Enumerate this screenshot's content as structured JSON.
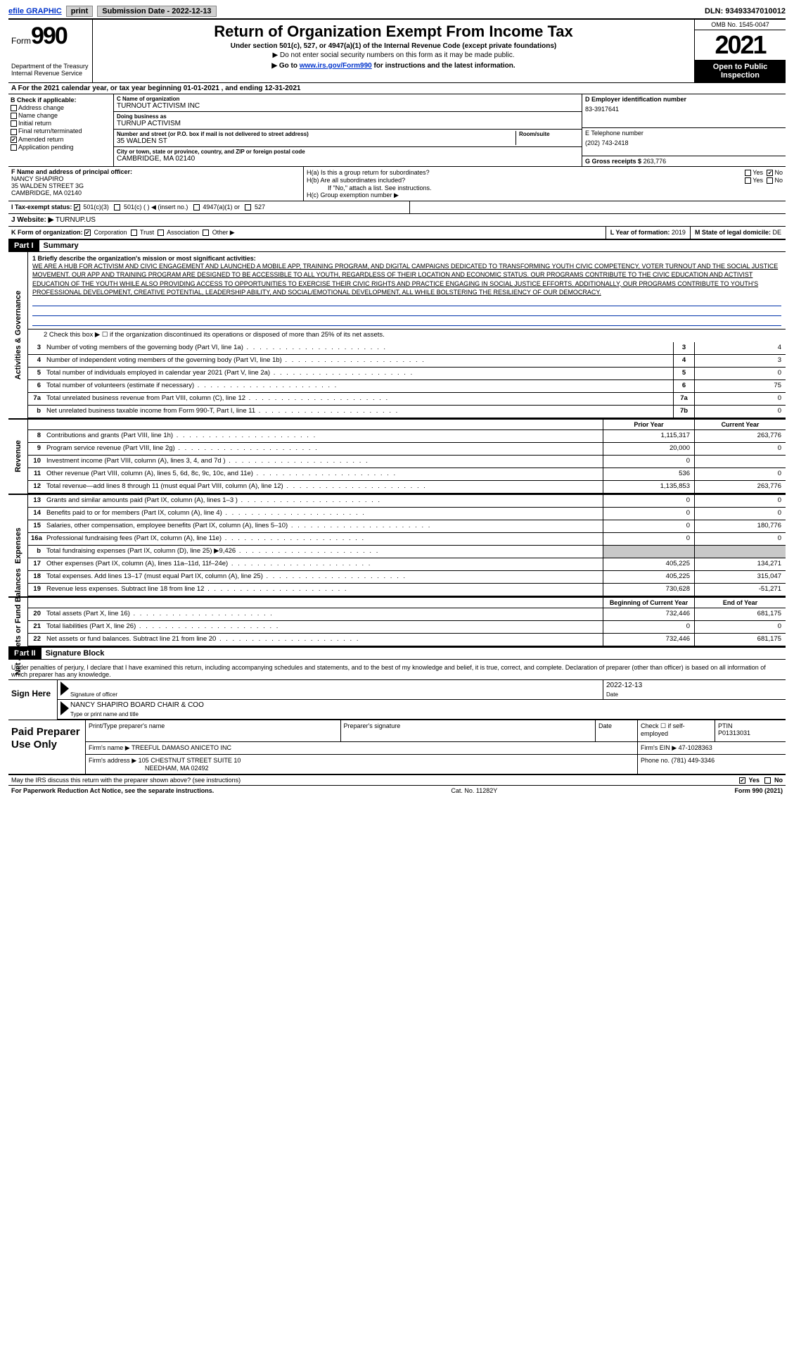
{
  "topbar": {
    "efile": "efile GRAPHIC",
    "print": "print",
    "subdate_label": "Submission Date - ",
    "subdate": "2022-12-13",
    "dln": "DLN: 93493347010012"
  },
  "header": {
    "form_prefix": "Form",
    "form_num": "990",
    "dept": "Department of the Treasury Internal Revenue Service",
    "title": "Return of Organization Exempt From Income Tax",
    "sub": "Under section 501(c), 527, or 4947(a)(1) of the Internal Revenue Code (except private foundations)",
    "note": "▶ Do not enter social security numbers on this form as it may be made public.",
    "goto_pre": "▶ Go to ",
    "goto_link": "www.irs.gov/Form990",
    "goto_post": " for instructions and the latest information.",
    "omb": "OMB No. 1545-0047",
    "year": "2021",
    "open": "Open to Public Inspection"
  },
  "row_a": "A  For the 2021 calendar year, or tax year beginning 01-01-2021   , and ending 12-31-2021",
  "box_b": {
    "label": "B Check if applicable:",
    "items": [
      "Address change",
      "Name change",
      "Initial return",
      "Final return/terminated",
      "Amended return",
      "Application pending"
    ],
    "checked_index": 4
  },
  "box_c": {
    "name_caption": "C Name of organization",
    "name": "TURNOUT ACTIVISM INC",
    "dba_caption": "Doing business as",
    "dba": "TURNUP ACTIVISM",
    "addr_caption": "Number and street (or P.O. box if mail is not delivered to street address)",
    "addr": "35 WALDEN ST",
    "room_caption": "Room/suite",
    "city_caption": "City or town, state or province, country, and ZIP or foreign postal code",
    "city": "CAMBRIDGE, MA  02140"
  },
  "box_d": {
    "label": "D Employer identification number",
    "val": "83-3917641"
  },
  "box_e": {
    "label": "E Telephone number",
    "val": "(202) 743-2418"
  },
  "box_g": {
    "label": "G Gross receipts $",
    "val": "263,776"
  },
  "box_f": {
    "label": "F Name and address of principal officer:",
    "name": "NANCY SHAPIRO",
    "addr1": "35 WALDEN STREET 3G",
    "addr2": "CAMBRIDGE, MA  02140"
  },
  "box_h": {
    "ha": "H(a)  Is this a group return for subordinates?",
    "ha_yes": "Yes",
    "ha_no": "No",
    "hb": "H(b)  Are all subordinates included?",
    "hb_yes": "Yes",
    "hb_no": "No",
    "hb_note": "If \"No,\" attach a list. See instructions.",
    "hc": "H(c)  Group exemption number ▶"
  },
  "row_i": {
    "label": "I   Tax-exempt status:",
    "opts": [
      "501(c)(3)",
      "501(c) (  ) ◀ (insert no.)",
      "4947(a)(1) or",
      "527"
    ],
    "checked": 0
  },
  "row_j": {
    "label": "J   Website: ▶",
    "val": "TURNUP.US"
  },
  "row_k": {
    "k": "K Form of organization:",
    "opts": [
      "Corporation",
      "Trust",
      "Association",
      "Other ▶"
    ],
    "checked": 0,
    "l_label": "L Year of formation:",
    "l_val": "2019",
    "m_label": "M State of legal domicile:",
    "m_val": "DE"
  },
  "part1": {
    "hdr": "Part I",
    "title": "Summary",
    "mission_lead": "1   Briefly describe the organization's mission or most significant activities:",
    "mission": "WE ARE A HUB FOR ACTIVISM AND CIVIC ENGAGEMENT AND LAUNCHED A MOBILE APP, TRAINING PROGRAM, AND DIGITAL CAMPAIGNS DEDICATED TO TRANSFORMING YOUTH CIVIC COMPETENCY, VOTER TURNOUT AND THE SOCIAL JUSTICE MOVEMENT. OUR APP AND TRAINING PROGRAM ARE DESIGNED TO BE ACCESSIBLE TO ALL YOUTH, REGARDLESS OF THEIR LOCATION AND ECONOMIC STATUS. OUR PROGRAMS CONTRIBUTE TO THE CIVIC EDUCATION AND ACTIVIST EDUCATION OF THE YOUTH WHILE ALSO PROVIDING ACCESS TO OPPORTUNITIES TO EXERCISE THEIR CIVIC RIGHTS AND PRACTICE ENGAGING IN SOCIAL JUSTICE EFFORTS. ADDITIONALLY, OUR PROGRAMS CONTRIBUTE TO YOUTH'S PROFESSIONAL DEVELOPMENT, CREATIVE POTENTIAL, LEADERSHIP ABILITY, AND SOCIAL/EMOTIONAL DEVELOPMENT, ALL WHILE BOLSTERING THE RESILIENCY OF OUR DEMOCRACY.",
    "line2": "2   Check this box ▶ ☐  if the organization discontinued its operations or disposed of more than 25% of its net assets.",
    "sideA": "Activities & Governance",
    "sideB": "Revenue",
    "sideC": "Expenses",
    "sideD": "Net Assets or Fund Balances",
    "gov_lines": [
      {
        "n": "3",
        "d": "Number of voting members of the governing body (Part VI, line 1a)",
        "box": "3",
        "v": "4"
      },
      {
        "n": "4",
        "d": "Number of independent voting members of the governing body (Part VI, line 1b)",
        "box": "4",
        "v": "3"
      },
      {
        "n": "5",
        "d": "Total number of individuals employed in calendar year 2021 (Part V, line 2a)",
        "box": "5",
        "v": "0"
      },
      {
        "n": "6",
        "d": "Total number of volunteers (estimate if necessary)",
        "box": "6",
        "v": "75"
      },
      {
        "n": "7a",
        "d": "Total unrelated business revenue from Part VIII, column (C), line 12",
        "box": "7a",
        "v": "0"
      },
      {
        "n": "b",
        "d": "Net unrelated business taxable income from Form 990-T, Part I, line 11",
        "box": "7b",
        "v": "0"
      }
    ],
    "col_prior": "Prior Year",
    "col_curr": "Current Year",
    "rev_lines": [
      {
        "n": "8",
        "d": "Contributions and grants (Part VIII, line 1h)",
        "p": "1,115,317",
        "c": "263,776"
      },
      {
        "n": "9",
        "d": "Program service revenue (Part VIII, line 2g)",
        "p": "20,000",
        "c": "0"
      },
      {
        "n": "10",
        "d": "Investment income (Part VIII, column (A), lines 3, 4, and 7d )",
        "p": "0",
        "c": ""
      },
      {
        "n": "11",
        "d": "Other revenue (Part VIII, column (A), lines 5, 6d, 8c, 9c, 10c, and 11e)",
        "p": "536",
        "c": "0"
      },
      {
        "n": "12",
        "d": "Total revenue—add lines 8 through 11 (must equal Part VIII, column (A), line 12)",
        "p": "1,135,853",
        "c": "263,776"
      }
    ],
    "exp_lines": [
      {
        "n": "13",
        "d": "Grants and similar amounts paid (Part IX, column (A), lines 1–3 )",
        "p": "0",
        "c": "0"
      },
      {
        "n": "14",
        "d": "Benefits paid to or for members (Part IX, column (A), line 4)",
        "p": "0",
        "c": "0"
      },
      {
        "n": "15",
        "d": "Salaries, other compensation, employee benefits (Part IX, column (A), lines 5–10)",
        "p": "0",
        "c": "180,776"
      },
      {
        "n": "16a",
        "d": "Professional fundraising fees (Part IX, column (A), line 11e)",
        "p": "0",
        "c": "0"
      },
      {
        "n": "b",
        "d": "Total fundraising expenses (Part IX, column (D), line 25) ▶9,426",
        "p": "SHADE",
        "c": "SHADE"
      },
      {
        "n": "17",
        "d": "Other expenses (Part IX, column (A), lines 11a–11d, 11f–24e)",
        "p": "405,225",
        "c": "134,271"
      },
      {
        "n": "18",
        "d": "Total expenses. Add lines 13–17 (must equal Part IX, column (A), line 25)",
        "p": "405,225",
        "c": "315,047"
      },
      {
        "n": "19",
        "d": "Revenue less expenses. Subtract line 18 from line 12",
        "p": "730,628",
        "c": "-51,271"
      }
    ],
    "col_begin": "Beginning of Current Year",
    "col_end": "End of Year",
    "net_lines": [
      {
        "n": "20",
        "d": "Total assets (Part X, line 16)",
        "p": "732,446",
        "c": "681,175"
      },
      {
        "n": "21",
        "d": "Total liabilities (Part X, line 26)",
        "p": "0",
        "c": "0"
      },
      {
        "n": "22",
        "d": "Net assets or fund balances. Subtract line 21 from line 20",
        "p": "732,446",
        "c": "681,175"
      }
    ]
  },
  "part2": {
    "hdr": "Part II",
    "title": "Signature Block",
    "declare": "Under penalties of perjury, I declare that I have examined this return, including accompanying schedules and statements, and to the best of my knowledge and belief, it is true, correct, and complete. Declaration of preparer (other than officer) is based on all information of which preparer has any knowledge.",
    "sign_label": "Sign Here",
    "sig_officer": "Signature of officer",
    "sig_date_label": "Date",
    "sig_date": "2022-12-13",
    "officer_name": "NANCY SHAPIRO  BOARD CHAIR & COO",
    "officer_caption": "Type or print name and title",
    "paid_label": "Paid Preparer Use Only",
    "prep_name_label": "Print/Type preparer's name",
    "prep_sig_label": "Preparer's signature",
    "prep_date_label": "Date",
    "prep_check": "Check ☐ if self-employed",
    "ptin_label": "PTIN",
    "ptin": "P01313031",
    "firm_name_label": "Firm's name    ▶",
    "firm_name": "TREEFUL DAMASO ANICETO INC",
    "firm_ein_label": "Firm's EIN ▶",
    "firm_ein": "47-1028363",
    "firm_addr_label": "Firm's address ▶",
    "firm_addr": "105 CHESTNUT STREET SUITE 10",
    "firm_city": "NEEDHAM, MA  02492",
    "phone_label": "Phone no.",
    "phone": "(781) 449-3346",
    "discuss": "May the IRS discuss this return with the preparer shown above? (see instructions)",
    "yes": "Yes",
    "no": "No"
  },
  "footer": {
    "paperwork": "For Paperwork Reduction Act Notice, see the separate instructions.",
    "cat": "Cat. No. 11282Y",
    "form": "Form 990 (2021)"
  }
}
